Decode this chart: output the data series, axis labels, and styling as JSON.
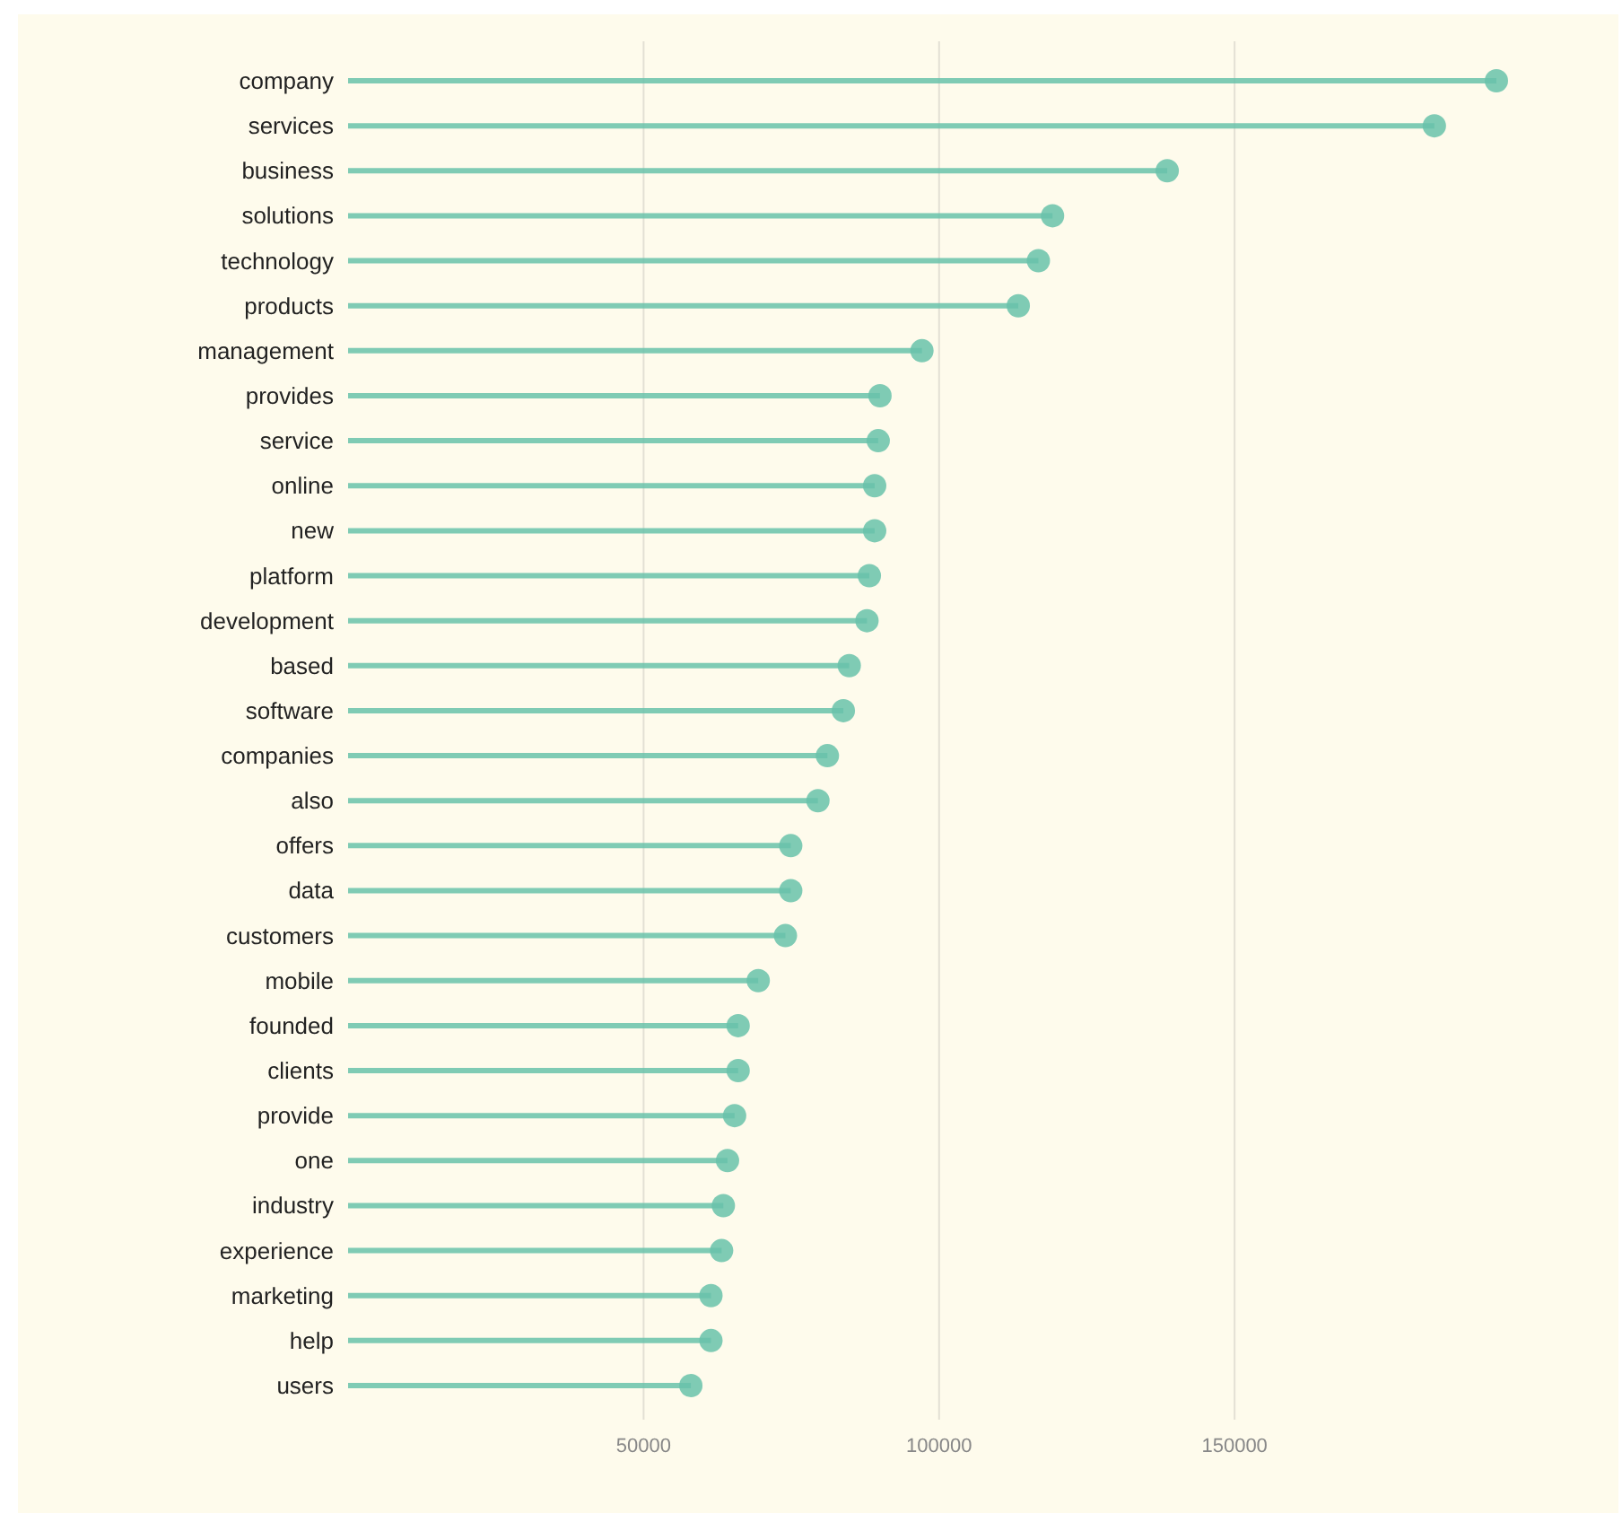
{
  "chart_data": {
    "type": "lollipop",
    "orientation": "horizontal",
    "categories": [
      "company",
      "services",
      "business",
      "solutions",
      "technology",
      "products",
      "management",
      "provides",
      "service",
      "online",
      "new",
      "platform",
      "development",
      "based",
      "software",
      "companies",
      "also",
      "offers",
      "data",
      "customers",
      "mobile",
      "founded",
      "clients",
      "provide",
      "one",
      "industry",
      "experience",
      "marketing",
      "help",
      "users"
    ],
    "values": [
      194300,
      183800,
      138600,
      119200,
      116800,
      113400,
      97100,
      90000,
      89700,
      89100,
      89100,
      88200,
      87800,
      84800,
      83800,
      81100,
      79500,
      74900,
      74900,
      74000,
      69400,
      66000,
      66000,
      65400,
      64200,
      63500,
      63200,
      61400,
      61400,
      58000
    ],
    "color": "#69c2aa",
    "xlim": [
      0,
      194300
    ],
    "xticks": [
      50000,
      100000,
      150000
    ],
    "grid": "x",
    "marker": "circle"
  }
}
